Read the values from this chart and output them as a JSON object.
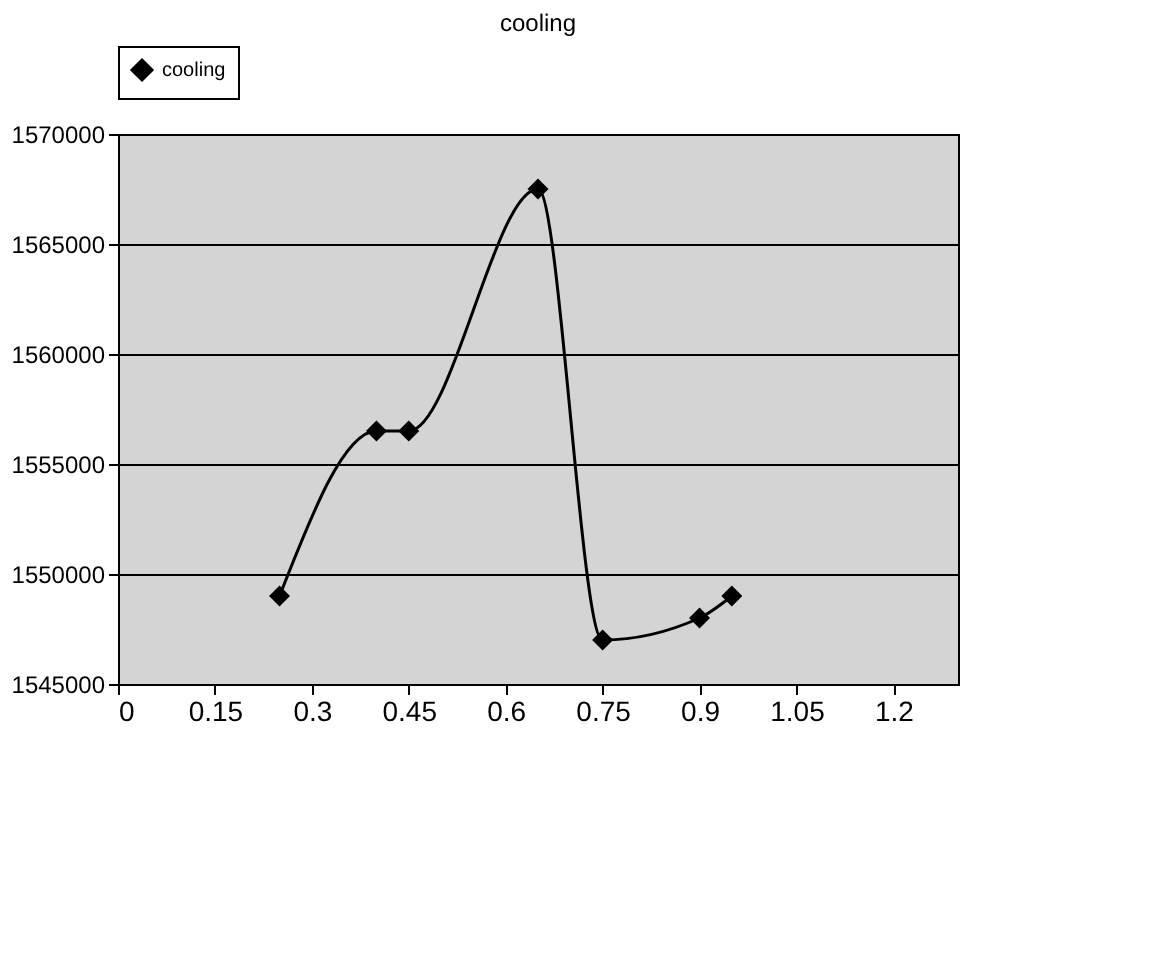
{
  "chart_data": {
    "type": "line",
    "title": "cooling",
    "x": [
      0.25,
      0.4,
      0.45,
      0.65,
      0.75,
      0.9,
      0.95
    ],
    "series": [
      {
        "name": "cooling",
        "color": "#000000",
        "values": [
          1549000,
          1556500,
          1556500,
          1567500,
          1547000,
          1548000,
          1549000
        ]
      }
    ],
    "xlim": [
      0,
      1.3
    ],
    "xticks": [
      0,
      0.15,
      0.3,
      0.45,
      0.6,
      0.75,
      0.9,
      1.05,
      1.2
    ],
    "ylim": [
      1545000,
      1570000
    ],
    "yticks": [
      1545000,
      1550000,
      1555000,
      1560000,
      1565000,
      1570000
    ],
    "grid": "y",
    "legend": "top",
    "marker": "diamond",
    "line_style": "solid"
  }
}
